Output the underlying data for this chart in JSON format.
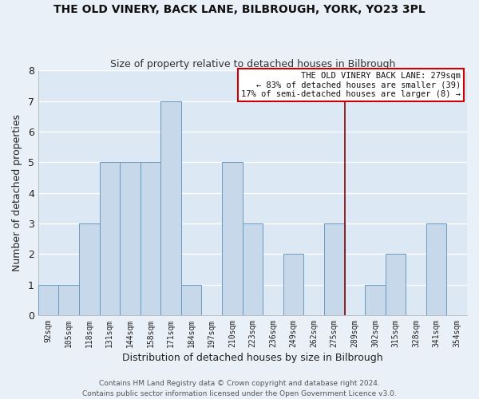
{
  "title": "THE OLD VINERY, BACK LANE, BILBROUGH, YORK, YO23 3PL",
  "subtitle": "Size of property relative to detached houses in Bilbrough",
  "xlabel": "Distribution of detached houses by size in Bilbrough",
  "ylabel": "Number of detached properties",
  "bin_labels": [
    "92sqm",
    "105sqm",
    "118sqm",
    "131sqm",
    "144sqm",
    "158sqm",
    "171sqm",
    "184sqm",
    "197sqm",
    "210sqm",
    "223sqm",
    "236sqm",
    "249sqm",
    "262sqm",
    "275sqm",
    "289sqm",
    "302sqm",
    "315sqm",
    "328sqm",
    "341sqm",
    "354sqm"
  ],
  "bar_heights": [
    1,
    1,
    3,
    5,
    5,
    5,
    7,
    1,
    0,
    5,
    3,
    0,
    2,
    0,
    3,
    0,
    1,
    2,
    0,
    3,
    0
  ],
  "bar_color": "#c8d8eb",
  "bar_edge_color": "#6a9abf",
  "ylim": [
    0,
    8
  ],
  "yticks": [
    0,
    1,
    2,
    3,
    4,
    5,
    6,
    7,
    8
  ],
  "vline_x": 14.5,
  "vline_color": "#8b0000",
  "annotation_title": "THE OLD VINERY BACK LANE: 279sqm",
  "annotation_line1": "← 83% of detached houses are smaller (39)",
  "annotation_line2": "17% of semi-detached houses are larger (8) →",
  "annotation_box_color": "#ffffff",
  "annotation_box_edge": "#cc0000",
  "footer_line1": "Contains HM Land Registry data © Crown copyright and database right 2024.",
  "footer_line2": "Contains public sector information licensed under the Open Government Licence v3.0.",
  "background_color": "#eaf0f8",
  "grid_color": "#ffffff",
  "plot_bg_color": "#dce8f4"
}
